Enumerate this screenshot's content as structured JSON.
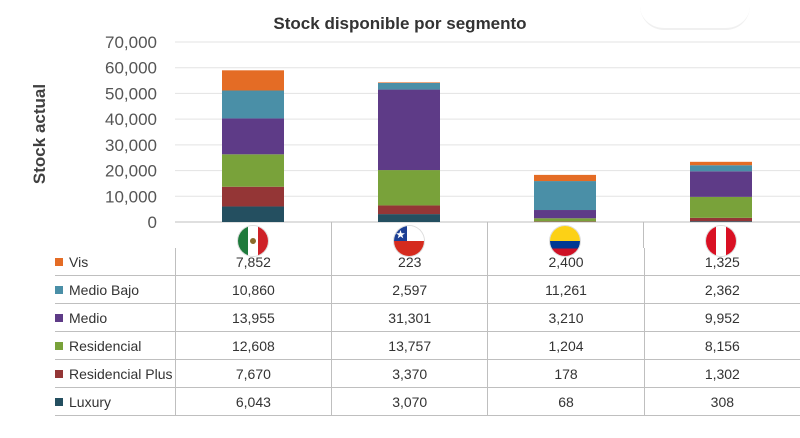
{
  "chart_data": {
    "type": "bar",
    "stacked": true,
    "title": "Stock disponible por segmento",
    "ylabel": "Stock actual",
    "ylim": [
      0,
      70000
    ],
    "yticks": [
      "0",
      "10,000",
      "20,000",
      "30,000",
      "40,000",
      "50,000",
      "60,000",
      "70,000"
    ],
    "categories": [
      "México",
      "Chile",
      "Colombia",
      "Perú"
    ],
    "category_icons": [
      "mexico-flag-icon",
      "chile-flag-icon",
      "colombia-flag-icon",
      "peru-flag-icon"
    ],
    "series": [
      {
        "name": "Vis",
        "color": "#e46c25",
        "values": [
          7852,
          223,
          2400,
          1325
        ],
        "labels": [
          "7,852",
          "223",
          "2,400",
          "1,325"
        ]
      },
      {
        "name": "Medio Bajo",
        "color": "#4a8fa7",
        "values": [
          10860,
          2597,
          11261,
          2362
        ],
        "labels": [
          "10,860",
          "2,597",
          "11,261",
          "2,362"
        ]
      },
      {
        "name": "Medio",
        "color": "#5e3b87",
        "values": [
          13955,
          31301,
          3210,
          9952
        ],
        "labels": [
          "13,955",
          "31,301",
          "3,210",
          "9,952"
        ]
      },
      {
        "name": "Residencial",
        "color": "#79a23a",
        "values": [
          12608,
          13757,
          1204,
          8156
        ],
        "labels": [
          "12,608",
          "13,757",
          "1,204",
          "8,156"
        ]
      },
      {
        "name": "Residencial Plus",
        "color": "#943636",
        "values": [
          7670,
          3370,
          178,
          1302
        ],
        "labels": [
          "7,670",
          "3,370",
          "178",
          "1,302"
        ]
      },
      {
        "name": "Luxury",
        "color": "#244f60",
        "values": [
          6043,
          3070,
          68,
          308
        ],
        "labels": [
          "6,043",
          "3,070",
          "68",
          "308"
        ]
      }
    ],
    "grid": true,
    "legend": "table-below"
  }
}
